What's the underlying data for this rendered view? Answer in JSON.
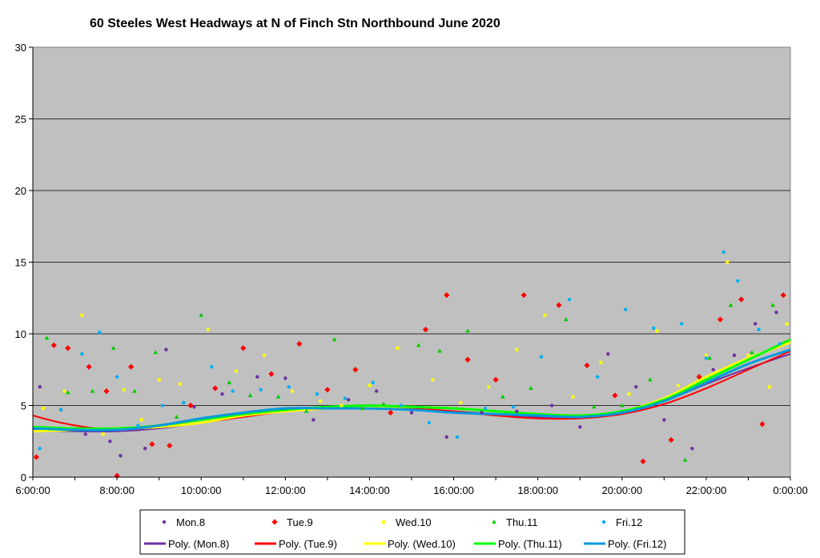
{
  "chart_data": {
    "type": "scatter",
    "title": "60 Steeles West Headways at N of Finch Stn Northbound June 2020",
    "xlabel": "",
    "ylabel": "",
    "xlim": [
      "6:00:00",
      "0:00:00"
    ],
    "ylim": [
      0,
      30
    ],
    "x_tick_labels": [
      "6:00:00",
      "8:00:00",
      "10:00:00",
      "12:00:00",
      "14:00:00",
      "16:00:00",
      "18:00:00",
      "20:00:00",
      "22:00:00",
      "0:00:00"
    ],
    "y_tick_labels": [
      "0",
      "5",
      "10",
      "15",
      "20",
      "25",
      "30"
    ],
    "grid": "horizontal",
    "plot_background": "#C0C0C0",
    "legend_position": "bottom",
    "series": [
      {
        "name": "Mon.8",
        "marker": "circle",
        "color": "#7030A0",
        "x": [
          "6:10",
          "6:40",
          "7:15",
          "7:50",
          "8:05",
          "8:40",
          "9:10",
          "9:50",
          "10:30",
          "11:20",
          "12:00",
          "12:40",
          "13:30",
          "14:10",
          "15:00",
          "15:50",
          "16:40",
          "17:30",
          "18:20",
          "19:00",
          "19:40",
          "20:20",
          "21:00",
          "21:40",
          "22:10",
          "22:40",
          "23:10",
          "23:40"
        ],
        "y": [
          6.3,
          4.7,
          3.0,
          2.5,
          1.5,
          2.0,
          8.9,
          4.9,
          5.8,
          7.0,
          6.9,
          4.0,
          5.4,
          6.0,
          4.5,
          2.8,
          4.5,
          4.6,
          5.0,
          3.5,
          8.6,
          6.3,
          4.0,
          2.0,
          7.5,
          8.5,
          10.7,
          11.5
        ]
      },
      {
        "name": "Tue.9",
        "marker": "diamond",
        "color": "#FF0000",
        "x": [
          "6:05",
          "6:30",
          "6:50",
          "7:20",
          "7:45",
          "8:00",
          "8:20",
          "8:50",
          "9:15",
          "9:45",
          "10:20",
          "11:00",
          "11:40",
          "12:20",
          "13:00",
          "13:40",
          "14:30",
          "15:20",
          "15:50",
          "16:20",
          "17:00",
          "17:40",
          "18:30",
          "19:10",
          "19:50",
          "20:30",
          "21:10",
          "21:50",
          "22:20",
          "22:50",
          "23:20",
          "23:50"
        ],
        "y": [
          1.4,
          9.2,
          9.0,
          7.7,
          6.0,
          0.1,
          7.7,
          2.3,
          2.2,
          5.0,
          6.2,
          9.0,
          7.2,
          9.3,
          6.1,
          7.5,
          4.5,
          10.3,
          12.7,
          8.2,
          6.8,
          12.7,
          12.0,
          7.8,
          5.7,
          1.1,
          2.6,
          7.0,
          11.0,
          12.4,
          3.7,
          12.7
        ]
      },
      {
        "name": "Wed.10",
        "marker": "square",
        "color": "#FFFF00",
        "x": [
          "6:15",
          "6:45",
          "7:10",
          "7:40",
          "8:10",
          "8:35",
          "9:00",
          "9:30",
          "10:10",
          "10:50",
          "11:30",
          "12:10",
          "12:50",
          "13:20",
          "14:00",
          "14:40",
          "15:30",
          "16:10",
          "16:50",
          "17:30",
          "18:10",
          "18:50",
          "19:30",
          "20:10",
          "20:50",
          "21:20",
          "22:00",
          "22:30",
          "23:00",
          "23:30",
          "23:55"
        ],
        "y": [
          4.8,
          6.0,
          11.3,
          3.0,
          6.1,
          4.0,
          6.8,
          6.5,
          10.3,
          7.4,
          8.5,
          6.0,
          5.3,
          5.0,
          6.4,
          9.0,
          6.8,
          5.2,
          6.3,
          8.9,
          11.3,
          5.6,
          8.0,
          5.8,
          10.2,
          6.4,
          8.5,
          15.0,
          8.5,
          6.3,
          10.7
        ]
      },
      {
        "name": "Thu.11",
        "marker": "triangle",
        "color": "#00CC00",
        "x": [
          "6:20",
          "6:50",
          "7:25",
          "7:55",
          "8:25",
          "8:55",
          "9:25",
          "10:00",
          "10:40",
          "11:10",
          "11:50",
          "12:30",
          "13:10",
          "13:50",
          "14:20",
          "15:10",
          "15:40",
          "16:20",
          "17:10",
          "17:50",
          "18:40",
          "19:20",
          "20:00",
          "20:40",
          "21:30",
          "22:05",
          "22:35",
          "23:05",
          "23:35"
        ],
        "y": [
          9.7,
          5.9,
          6.0,
          9.0,
          6.0,
          8.7,
          4.2,
          11.3,
          6.6,
          5.7,
          5.6,
          4.6,
          9.6,
          4.8,
          5.1,
          9.2,
          8.8,
          10.2,
          5.6,
          6.2,
          11.0,
          4.9,
          5.0,
          6.8,
          1.2,
          8.3,
          12.0,
          8.7,
          12.0
        ]
      },
      {
        "name": "Fri.12",
        "marker": "circle",
        "color": "#00B0F0",
        "x": [
          "6:10",
          "6:40",
          "7:10",
          "7:35",
          "8:00",
          "8:30",
          "9:05",
          "9:35",
          "10:15",
          "10:45",
          "11:25",
          "12:05",
          "12:45",
          "13:25",
          "14:05",
          "14:45",
          "15:25",
          "16:05",
          "16:45",
          "17:25",
          "18:05",
          "18:45",
          "19:25",
          "20:05",
          "20:45",
          "21:25",
          "22:00",
          "22:25",
          "22:45",
          "23:15",
          "23:45"
        ],
        "y": [
          2.0,
          4.7,
          8.6,
          10.1,
          7.0,
          3.6,
          5.0,
          5.2,
          7.7,
          6.0,
          6.1,
          6.3,
          5.8,
          5.5,
          6.6,
          5.0,
          3.8,
          2.8,
          4.8,
          4.9,
          8.4,
          12.4,
          7.0,
          11.7,
          10.4,
          10.7,
          8.3,
          15.7,
          13.7,
          10.3,
          9.3
        ]
      }
    ],
    "trendlines": [
      {
        "name": "Poly. (Mon.8)",
        "color": "#7030A0",
        "stroke_width": 2,
        "x": [
          "6:00",
          "7:00",
          "8:00",
          "9:00",
          "10:00",
          "11:00",
          "12:00",
          "13:00",
          "14:00",
          "15:00",
          "16:00",
          "17:00",
          "18:00",
          "19:00",
          "20:00",
          "21:00",
          "22:00",
          "23:00",
          "0:00"
        ],
        "y": [
          3.3,
          3.2,
          3.2,
          3.4,
          3.8,
          4.2,
          4.6,
          4.8,
          4.9,
          4.8,
          4.6,
          4.4,
          4.2,
          4.2,
          4.5,
          5.3,
          6.5,
          7.6,
          8.6
        ]
      },
      {
        "name": "Poly. (Tue.9)",
        "color": "#FF0000",
        "stroke_width": 2,
        "x": [
          "6:00",
          "6:40",
          "7:30",
          "8:00",
          "9:00",
          "10:00",
          "11:00",
          "12:00",
          "13:00",
          "14:00",
          "15:00",
          "16:00",
          "17:00",
          "18:00",
          "19:00",
          "20:00",
          "21:00",
          "22:00",
          "23:00",
          "0:00"
        ],
        "y": [
          4.3,
          3.8,
          3.4,
          3.4,
          3.5,
          3.8,
          4.2,
          4.6,
          4.9,
          4.9,
          4.8,
          4.6,
          4.3,
          4.1,
          4.1,
          4.4,
          5.1,
          6.2,
          7.5,
          8.8
        ]
      },
      {
        "name": "Poly. (Wed.10)",
        "color": "#FFFF00",
        "stroke_width": 3,
        "x": [
          "6:00",
          "7:00",
          "8:00",
          "9:00",
          "10:00",
          "11:00",
          "12:00",
          "13:00",
          "14:00",
          "15:00",
          "16:00",
          "17:00",
          "18:00",
          "19:00",
          "20:00",
          "21:00",
          "22:00",
          "23:00",
          "0:00"
        ],
        "y": [
          3.2,
          3.3,
          3.4,
          3.5,
          3.8,
          4.3,
          4.6,
          4.8,
          4.9,
          4.9,
          4.8,
          4.6,
          4.4,
          4.3,
          4.6,
          5.5,
          7.0,
          8.3,
          9.4
        ]
      },
      {
        "name": "Poly. (Thu.11)",
        "color": "#00FF00",
        "stroke_width": 3,
        "x": [
          "6:00",
          "7:00",
          "8:00",
          "9:00",
          "10:00",
          "11:00",
          "12:00",
          "13:00",
          "14:00",
          "15:00",
          "16:00",
          "17:00",
          "18:00",
          "19:00",
          "20:00",
          "21:00",
          "22:00",
          "23:00",
          "0:00"
        ],
        "y": [
          3.5,
          3.4,
          3.4,
          3.6,
          4.0,
          4.4,
          4.7,
          4.9,
          5.0,
          4.9,
          4.8,
          4.6,
          4.4,
          4.3,
          4.6,
          5.4,
          6.8,
          8.2,
          9.6
        ]
      },
      {
        "name": "Poly. (Fri.12)",
        "color": "#0099DD",
        "stroke_width": 3,
        "x": [
          "6:00",
          "7:00",
          "8:00",
          "9:00",
          "10:00",
          "11:00",
          "12:00",
          "13:00",
          "14:00",
          "15:00",
          "16:00",
          "17:00",
          "18:00",
          "19:00",
          "20:00",
          "21:00",
          "22:00",
          "23:00",
          "0:00"
        ],
        "y": [
          3.4,
          3.3,
          3.3,
          3.6,
          4.1,
          4.5,
          4.8,
          4.8,
          4.8,
          4.7,
          4.5,
          4.4,
          4.3,
          4.2,
          4.5,
          5.3,
          6.6,
          7.9,
          8.9
        ]
      }
    ],
    "legend": [
      {
        "label": "Mon.8",
        "kind": "marker",
        "marker": "circle",
        "color": "#7030A0"
      },
      {
        "label": "Tue.9",
        "kind": "marker",
        "marker": "diamond",
        "color": "#FF0000"
      },
      {
        "label": "Wed.10",
        "kind": "marker",
        "marker": "square",
        "color": "#FFFF00"
      },
      {
        "label": "Thu.11",
        "kind": "marker",
        "marker": "triangle",
        "color": "#00CC00"
      },
      {
        "label": "Fri.12",
        "kind": "marker",
        "marker": "circle",
        "color": "#00B0F0"
      },
      {
        "label": "Poly. (Mon.8)",
        "kind": "line",
        "color": "#7030A0"
      },
      {
        "label": "Poly. (Tue.9)",
        "kind": "line",
        "color": "#FF0000"
      },
      {
        "label": "Poly. (Wed.10)",
        "kind": "line",
        "color": "#FFFF00"
      },
      {
        "label": "Poly. (Thu.11)",
        "kind": "line",
        "color": "#00FF00"
      },
      {
        "label": "Poly. (Fri.12)",
        "kind": "line",
        "color": "#0099DD"
      }
    ]
  }
}
